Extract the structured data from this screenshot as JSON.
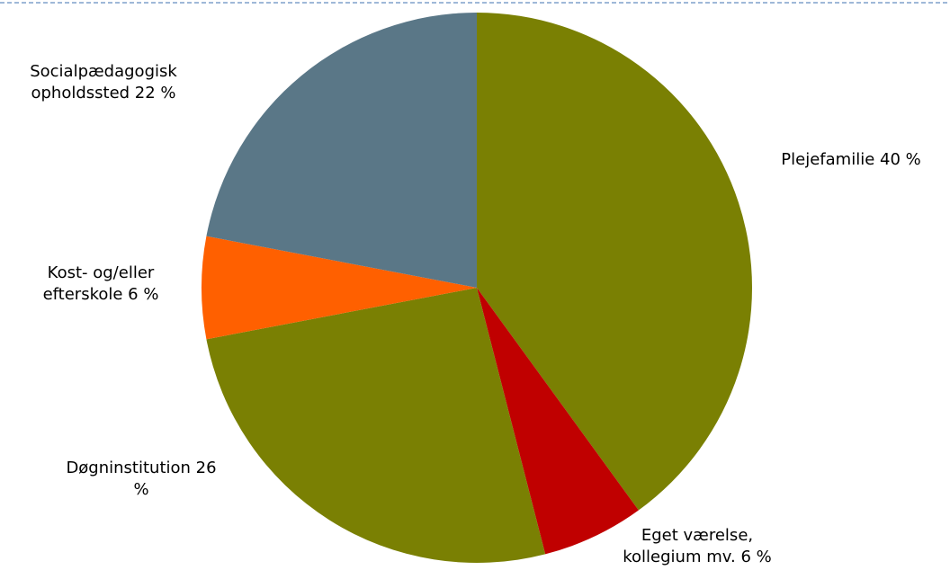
{
  "chart_data": {
    "type": "pie",
    "values": [
      40,
      6,
      26,
      6,
      22
    ],
    "labels": [
      [
        "Plejefamilie 40 %"
      ],
      [
        "Eget værelse,",
        "kollegium mv. 6 %"
      ],
      [
        "Døgninstitution 26",
        "%"
      ],
      [
        "Kost- og/eller",
        "efterskole 6 %"
      ],
      [
        "Socialpædagogisk",
        "opholdssted 22 %"
      ]
    ],
    "colors": [
      "#7a8003",
      "#c00000",
      "#7a8003",
      "#ff6000",
      "#5a7787"
    ]
  }
}
